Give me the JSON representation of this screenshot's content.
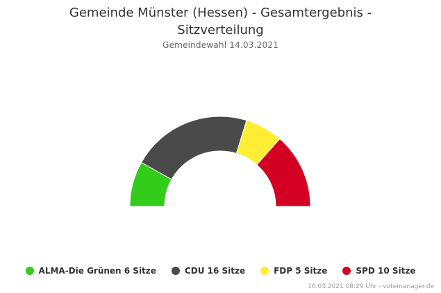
{
  "chart_data": {
    "type": "pie",
    "variant": "parliament-semicircle",
    "title": "Gemeinde Münster (Hessen) - Gesamtergebnis - Sitzverteilung",
    "subtitle": "Gemeindewahl 14.03.2021",
    "series": [
      {
        "name": "ALMA-Die Grünen",
        "value": 6,
        "unit": "Sitze",
        "color": "#33cc1a"
      },
      {
        "name": "CDU",
        "value": 16,
        "unit": "Sitze",
        "color": "#4a4a4a"
      },
      {
        "name": "FDP",
        "value": 5,
        "unit": "Sitze",
        "color": "#ffee33"
      },
      {
        "name": "SPD",
        "value": 10,
        "unit": "Sitze",
        "color": "#d40024"
      }
    ],
    "legend_position": "bottom",
    "credits": "16.03.2021 08:29 Uhr - votemanager.de"
  }
}
